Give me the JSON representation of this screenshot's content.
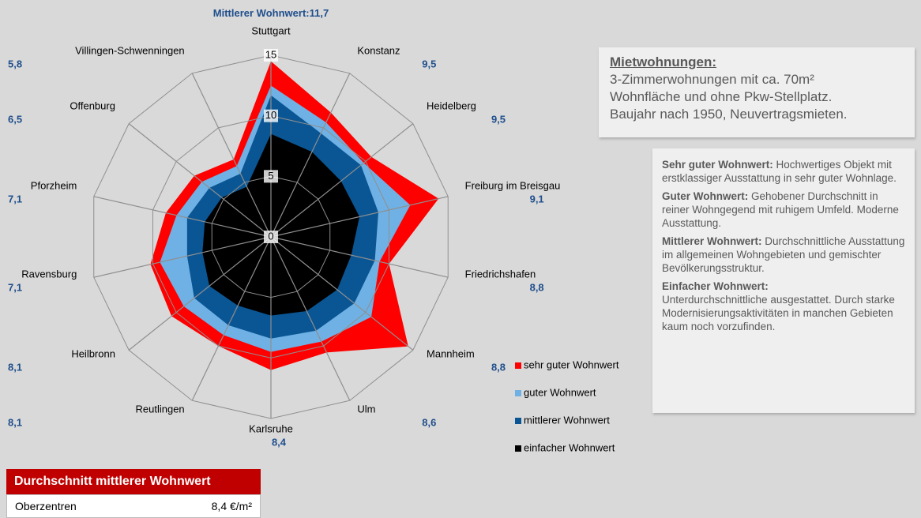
{
  "chart_data": {
    "type": "radar",
    "title": "Mittlerer Wohnwert:",
    "categories": [
      "Stuttgart",
      "Konstanz",
      "Heidelberg",
      "Freiburg im Breisgau",
      "Friedrichshafen",
      "Mannheim",
      "Ulm",
      "Karlsruhe",
      "Reutlingen",
      "Heilbronn",
      "Ravensburg",
      "Pforzheim",
      "Offenburg",
      "Villingen-Schwenningen"
    ],
    "series": [
      {
        "name": "sehr guter Wohnwert",
        "color": "#ff0000",
        "values": [
          14.5,
          11.4,
          10.6,
          14.2,
          10.0,
          14.5,
          10.6,
          11.0,
          10.0,
          10.5,
          10.2,
          8.9,
          8.1,
          7.1
        ]
      },
      {
        "name": "guter Wohnwert",
        "color": "#6fb1e4",
        "values": [
          12.5,
          10.5,
          9.8,
          11.8,
          9.2,
          10.6,
          9.6,
          9.5,
          9.0,
          9.2,
          9.4,
          8.0,
          7.3,
          6.5
        ]
      },
      {
        "name": "mittlerer Wohnwert",
        "color": "#0a5694",
        "values": [
          11.7,
          9.5,
          9.5,
          9.1,
          8.8,
          8.8,
          8.6,
          8.4,
          8.1,
          8.1,
          7.1,
          7.1,
          6.5,
          5.8
        ],
        "value_labels": [
          "11,7",
          "9,5",
          "9,5",
          "9,1",
          "8,8",
          "8,8",
          "8,6",
          "8,4",
          "8,1",
          "8,1",
          "7,1",
          "7,1",
          "6,5",
          "5,8"
        ]
      },
      {
        "name": "einfacher Wohnwert",
        "color": "#000000",
        "values": [
          8.5,
          7.8,
          7.4,
          7.5,
          6.8,
          7.0,
          6.8,
          6.5,
          6.3,
          6.5,
          5.8,
          5.6,
          5.2,
          4.6
        ]
      }
    ],
    "ylim": [
      0,
      15
    ],
    "yticks": [
      0,
      5,
      10,
      15
    ],
    "grid": true
  },
  "info": {
    "heading": "Mietwohnungen:",
    "lines": [
      "3-Zimmerwohnungen mit ca. 70m²",
      "Wohnfläche und ohne Pkw-Stellplatz.",
      "Baujahr nach 1950, Neuvertragsmieten."
    ]
  },
  "definitions": [
    {
      "term": "Sehr guter Wohnwert:",
      "text": "Hochwertiges Objekt mit erstklassiger Ausstattung in sehr guter Wohnlage."
    },
    {
      "term": "Guter Wohnwert:",
      "text": "Gehobener Durchschnitt in reiner Wohngegend mit ruhigem Umfeld. Moderne Ausstattung."
    },
    {
      "term": "Mittlerer Wohnwert:",
      "text": "Durchschnittliche Ausstattung im allgemeinen Wohngebieten und gemischter Bevölkerungsstruktur."
    },
    {
      "term": "Einfacher Wohnwert:",
      "text": "Unterdurchschnittliche ausgestattet. Durch starke Modernisierungsaktivitäten in manchen Gebieten kaum noch vorzufinden."
    }
  ],
  "table": {
    "header": "Durchschnitt mittlerer Wohnwert",
    "rows": [
      [
        "Oberzentren",
        "8,4 €/m²"
      ]
    ]
  }
}
